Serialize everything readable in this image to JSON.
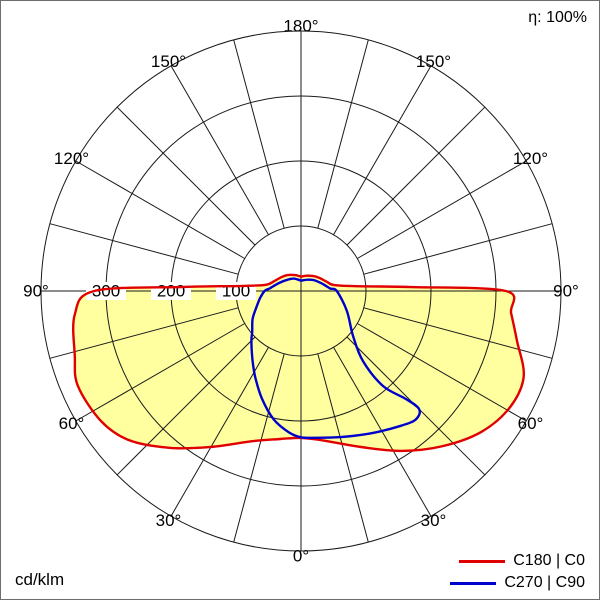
{
  "labels": {
    "efficiency": "η: 100%",
    "units": "cd/klm"
  },
  "legend": [
    {
      "label": "C180 | C0",
      "color": "#e00000"
    },
    {
      "label": "C270 | C90",
      "color": "#0000cc"
    }
  ],
  "chart_data": {
    "type": "polar",
    "subtype": "luminous-intensity-distribution",
    "units": "cd/klm",
    "efficiency": "η: 100%",
    "grid_color": "#1a1a1a",
    "grid_step_deg": 15,
    "radial_ticks": [
      100,
      200,
      300
    ],
    "radial_max": 400,
    "angle_labels": [
      {
        "deg": 0,
        "text": "0°"
      },
      {
        "deg": 30,
        "text": "30°"
      },
      {
        "deg": 60,
        "text": "60°"
      },
      {
        "deg": 90,
        "text": "90°"
      },
      {
        "deg": 120,
        "text": "120°"
      },
      {
        "deg": 150,
        "text": "150°"
      }
    ],
    "top_label": {
      "deg": 180,
      "text": "180°"
    },
    "gamma_convention": "0 deg = nadir (bottom); negative gamma = left half (C180/C270), positive gamma = right half (C0/C90); values in cd/klm",
    "series": [
      {
        "name": "C180 | C0",
        "data_name": "curve-c180-c0",
        "color": "#e00000",
        "fill": "#ffffa0",
        "points": [
          [
            -180,
            22
          ],
          [
            -160,
            26
          ],
          [
            -140,
            32
          ],
          [
            -125,
            37
          ],
          [
            -110,
            44
          ],
          [
            -100,
            55
          ],
          [
            -95,
            90
          ],
          [
            -92,
            180
          ],
          [
            -90,
            318
          ],
          [
            -84,
            350
          ],
          [
            -74,
            362
          ],
          [
            -67,
            373
          ],
          [
            -57,
            367
          ],
          [
            -49,
            350
          ],
          [
            -40,
            315
          ],
          [
            -30,
            277
          ],
          [
            -18,
            243
          ],
          [
            -8,
            230
          ],
          [
            0,
            226
          ],
          [
            8,
            232
          ],
          [
            21,
            257
          ],
          [
            32,
            290
          ],
          [
            42,
            322
          ],
          [
            52,
            352
          ],
          [
            61,
            368
          ],
          [
            69,
            367
          ],
          [
            77,
            341
          ],
          [
            84,
            325
          ],
          [
            90,
            315
          ],
          [
            92,
            170
          ],
          [
            95,
            85
          ],
          [
            100,
            52
          ],
          [
            110,
            42
          ],
          [
            125,
            35
          ],
          [
            140,
            30
          ],
          [
            160,
            25
          ],
          [
            180,
            22
          ]
        ]
      },
      {
        "name": "C270 | C90",
        "data_name": "curve-c270-c90",
        "color": "#0000cc",
        "fill": null,
        "points": [
          [
            -180,
            16
          ],
          [
            -150,
            22
          ],
          [
            -130,
            27
          ],
          [
            -110,
            36
          ],
          [
            -95,
            48
          ],
          [
            -90,
            56
          ],
          [
            -80,
            64
          ],
          [
            -70,
            73
          ],
          [
            -60,
            86
          ],
          [
            -50,
            98
          ],
          [
            -45,
            108
          ],
          [
            -35,
            130
          ],
          [
            -28,
            150
          ],
          [
            -20,
            176
          ],
          [
            -12,
            202
          ],
          [
            -5,
            218
          ],
          [
            0,
            225
          ],
          [
            5.8,
            227
          ],
          [
            15.3,
            233
          ],
          [
            26.2,
            244
          ],
          [
            36.5,
            258
          ],
          [
            41.9,
            265
          ],
          [
            45,
            257
          ],
          [
            44.2,
            232
          ],
          [
            40.8,
            193
          ],
          [
            41.5,
            144
          ],
          [
            49.1,
            106
          ],
          [
            66.5,
            77
          ],
          [
            90,
            55
          ],
          [
            95,
            45
          ],
          [
            110,
            34
          ],
          [
            130,
            26
          ],
          [
            150,
            20
          ],
          [
            180,
            16
          ]
        ]
      }
    ]
  }
}
